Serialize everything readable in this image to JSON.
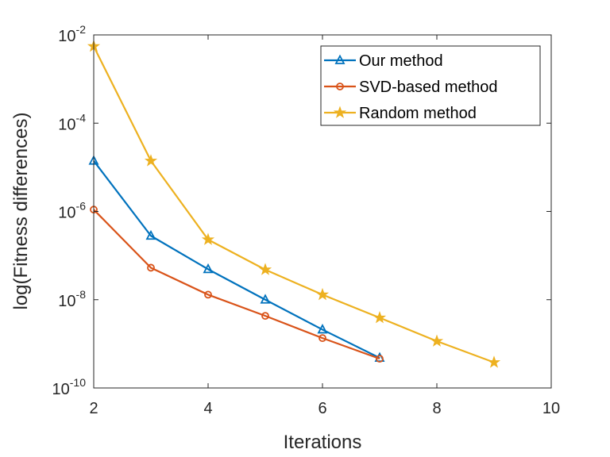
{
  "chart_data": {
    "type": "line",
    "title": "",
    "xlabel": "Iterations",
    "ylabel": "log(Fitness differences)",
    "x_scale": "linear",
    "y_scale": "log",
    "xlim": [
      2,
      10
    ],
    "ylim": [
      1e-10,
      0.01
    ],
    "xticks": [
      2,
      4,
      6,
      8,
      10
    ],
    "yticks": [
      {
        "value": 1e-10,
        "base": "10",
        "exp": "-10"
      },
      {
        "value": 1e-08,
        "base": "10",
        "exp": "-8"
      },
      {
        "value": 1e-06,
        "base": "10",
        "exp": "-6"
      },
      {
        "value": 0.0001,
        "base": "10",
        "exp": "-4"
      },
      {
        "value": 0.01,
        "base": "10",
        "exp": "-2"
      }
    ],
    "grid": false,
    "legend_position": "top-right",
    "series": [
      {
        "name": "Our method",
        "color": "#0072BD",
        "marker": "triangle",
        "x": [
          2,
          3,
          4,
          5,
          6,
          7
        ],
        "y": [
          1.4e-05,
          2.8e-07,
          4.9e-08,
          1e-08,
          2.1e-09,
          4.8e-10
        ]
      },
      {
        "name": "SVD-based method",
        "color": "#D95319",
        "marker": "circle",
        "x": [
          2,
          3,
          4,
          5,
          6,
          7
        ],
        "y": [
          1.1e-06,
          5.3e-08,
          1.3e-08,
          4.3e-09,
          1.35e-09,
          4.6e-10
        ]
      },
      {
        "name": "Random method",
        "color": "#EDB120",
        "marker": "star",
        "x": [
          2,
          3,
          4,
          5,
          6,
          7,
          8,
          9
        ],
        "y": [
          0.0055,
          1.4e-05,
          2.3e-07,
          4.8e-08,
          1.3e-08,
          3.9e-09,
          1.15e-09,
          3.8e-10
        ]
      }
    ]
  }
}
